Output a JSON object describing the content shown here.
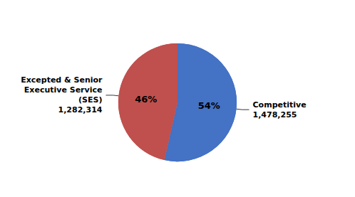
{
  "chart_data": {
    "type": "pie",
    "categories": [
      "Competitive",
      "Excepted & Senior\nExecutive Service\n(SES)"
    ],
    "values": [
      1478255,
      1282314
    ],
    "value_labels": [
      "1,478,255",
      "1,282,314"
    ],
    "percentages": [
      54,
      46
    ],
    "percent_labels": [
      "54%",
      "46%"
    ],
    "colors": [
      "#4472C4",
      "#C0504D"
    ],
    "data_labels": true,
    "legend": false
  }
}
